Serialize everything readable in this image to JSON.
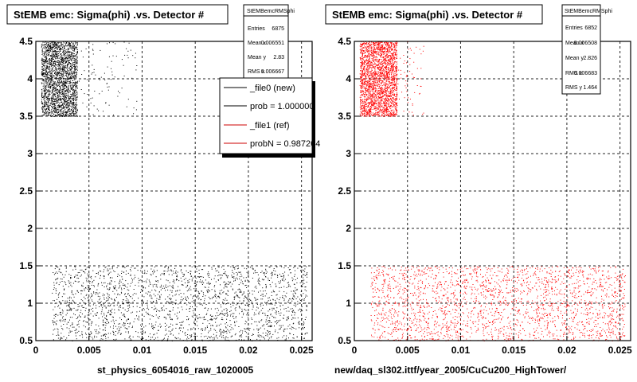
{
  "chart_data": [
    {
      "type": "scatter",
      "title": "StEMB emc: Sigma(phi) .vs. Detector #",
      "xlabel": "st_physics_6054016_raw_1020005",
      "ylabel": "",
      "xlim": [
        0,
        0.026
      ],
      "ylim": [
        0.5,
        4.5
      ],
      "x_ticks": [
        "0",
        "0.005",
        "0.01",
        "0.015",
        "0.02",
        "0.025"
      ],
      "y_ticks": [
        "0.5",
        "1",
        "1.5",
        "2",
        "2.5",
        "3",
        "3.5",
        "4",
        "4.5"
      ],
      "grid": true,
      "marker_color": "#000000",
      "clusters": [
        {
          "x_range": [
            0.0005,
            0.0039
          ],
          "y_range": [
            3.5,
            4.5
          ],
          "points": 2200,
          "note": "dense band"
        },
        {
          "x_range": [
            0.0039,
            0.0095
          ],
          "y_range": [
            3.5,
            4.5
          ],
          "points": 90
        },
        {
          "x_range": [
            0.0015,
            0.0255
          ],
          "y_range": [
            0.5,
            1.5
          ],
          "points": 2300
        }
      ],
      "stats": {
        "name": "StEMBemcRMSphi",
        "rows": [
          {
            "label": "Entries",
            "value": "6875"
          },
          {
            "label": "Mean x",
            "value": "0.006551"
          },
          {
            "label": "Mean y",
            "value": "2.83"
          },
          {
            "label": "RMS x",
            "value": "0.006667"
          }
        ]
      },
      "legend": {
        "placement": "top-right",
        "entries": [
          {
            "label": "_file0 (new)",
            "color": "#000000"
          },
          {
            "label": "prob = 1.000000",
            "color": "#000000"
          },
          {
            "label": "_file1 (ref)",
            "color": "#cc0000"
          },
          {
            "label": "probN = 0.987204",
            "color": "#cc0000"
          }
        ]
      }
    },
    {
      "type": "scatter",
      "title": "StEMB emc: Sigma(phi) .vs. Detector #",
      "xlabel": "new/daq_sl302.ittf/year_2005/CuCu200_HighTower/",
      "ylabel": "",
      "xlim": [
        0,
        0.026
      ],
      "ylim": [
        0.5,
        4.5
      ],
      "x_ticks": [
        "0",
        "0.005",
        "0.01",
        "0.015",
        "0.02",
        "0.025"
      ],
      "y_ticks": [
        "0.5",
        "1",
        "1.5",
        "2",
        "2.5",
        "3",
        "3.5",
        "4",
        "4.5"
      ],
      "grid": true,
      "marker_color": "#ff0000",
      "clusters": [
        {
          "x_range": [
            0.0005,
            0.004
          ],
          "y_range": [
            3.5,
            4.5
          ],
          "points": 2400,
          "note": "dense band"
        },
        {
          "x_range": [
            0.004,
            0.0065
          ],
          "y_range": [
            3.5,
            4.5
          ],
          "points": 60
        },
        {
          "x_range": [
            0.0015,
            0.0255
          ],
          "y_range": [
            0.5,
            1.5
          ],
          "points": 2300
        }
      ],
      "stats": {
        "name": "StEMBemcRMSphi",
        "rows": [
          {
            "label": "Entries",
            "value": "6852"
          },
          {
            "label": "Mean x",
            "value": "0.006508"
          },
          {
            "label": "Mean y",
            "value": "2.826"
          },
          {
            "label": "RMS x",
            "value": "0.006683"
          },
          {
            "label": "RMS y",
            "value": "1.464"
          }
        ]
      }
    }
  ]
}
